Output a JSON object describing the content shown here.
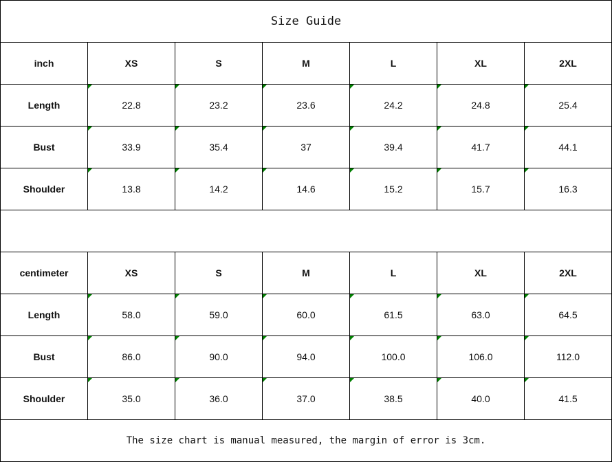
{
  "title": "Size Guide",
  "tables": [
    {
      "unit": "inch",
      "sizes": [
        "XS",
        "S",
        "M",
        "L",
        "XL",
        "2XL"
      ],
      "rows": [
        {
          "label": "Length",
          "values": [
            "22.8",
            "23.2",
            "23.6",
            "24.2",
            "24.8",
            "25.4"
          ]
        },
        {
          "label": "Bust",
          "values": [
            "33.9",
            "35.4",
            "37",
            "39.4",
            "41.7",
            "44.1"
          ]
        },
        {
          "label": "Shoulder",
          "values": [
            "13.8",
            "14.2",
            "14.6",
            "15.2",
            "15.7",
            "16.3"
          ]
        }
      ]
    },
    {
      "unit": "centimeter",
      "sizes": [
        "XS",
        "S",
        "M",
        "L",
        "XL",
        "2XL"
      ],
      "rows": [
        {
          "label": "Length",
          "values": [
            "58.0",
            "59.0",
            "60.0",
            "61.5",
            "63.0",
            "64.5"
          ]
        },
        {
          "label": "Bust",
          "values": [
            "86.0",
            "90.0",
            "94.0",
            "100.0",
            "106.0",
            "112.0"
          ]
        },
        {
          "label": "Shoulder",
          "values": [
            "35.0",
            "36.0",
            "37.0",
            "38.5",
            "40.0",
            "41.5"
          ]
        }
      ]
    }
  ],
  "note": "The size chart is manual measured, the margin of error is 3cm.",
  "colors": {
    "cell_marker": "#008000",
    "border": "#000000"
  }
}
